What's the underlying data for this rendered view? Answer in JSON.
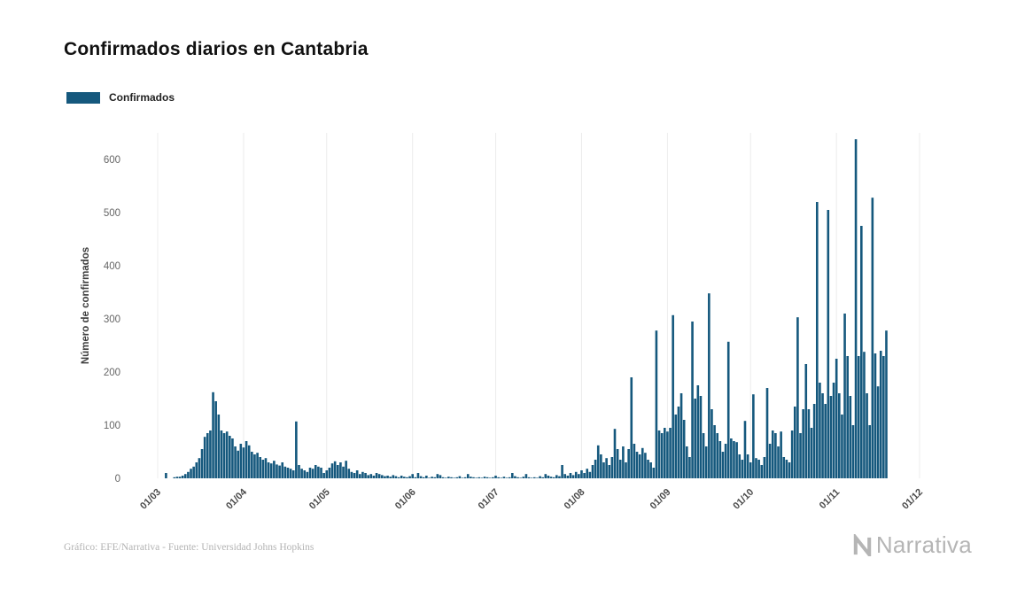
{
  "title": "Confirmados diarios en Cantabria",
  "legend": {
    "label": "Confirmados",
    "color": "#15587d"
  },
  "footer": {
    "credit": "Gráfico: EFE/Narrativa - Fuente: Universidad Johns Hopkins"
  },
  "logo": {
    "text": "Narrativa"
  },
  "chart_data": {
    "type": "bar",
    "title": "Confirmados diarios en Cantabria",
    "series_name": "Confirmados",
    "xlabel": "",
    "ylabel": "Número de confirmados",
    "start_date": "2020-03-01",
    "ylim": [
      0,
      650
    ],
    "y_ticks": [
      0,
      100,
      200,
      300,
      400,
      500,
      600
    ],
    "x_ticks": [
      {
        "label": "01/03",
        "day": 0
      },
      {
        "label": "01/04",
        "day": 31
      },
      {
        "label": "01/05",
        "day": 61
      },
      {
        "label": "01/06",
        "day": 92
      },
      {
        "label": "01/07",
        "day": 122
      },
      {
        "label": "01/08",
        "day": 153
      },
      {
        "label": "01/09",
        "day": 184
      },
      {
        "label": "01/10",
        "day": 214
      },
      {
        "label": "01/11",
        "day": 245
      },
      {
        "label": "01/12",
        "day": 275
      }
    ],
    "bar_color": "#15587d",
    "grid": "vertical-month-lines",
    "legend_position": "top-left",
    "values": [
      0,
      0,
      0,
      10,
      0,
      0,
      2,
      3,
      3,
      5,
      8,
      12,
      18,
      22,
      30,
      38,
      55,
      78,
      85,
      90,
      162,
      145,
      120,
      90,
      85,
      88,
      80,
      75,
      60,
      52,
      65,
      58,
      70,
      62,
      50,
      45,
      48,
      40,
      35,
      38,
      30,
      28,
      33,
      26,
      24,
      30,
      22,
      20,
      18,
      15,
      107,
      25,
      18,
      15,
      12,
      20,
      18,
      25,
      22,
      20,
      10,
      15,
      20,
      28,
      32,
      25,
      30,
      22,
      33,
      18,
      12,
      10,
      15,
      8,
      12,
      10,
      6,
      8,
      5,
      10,
      8,
      6,
      4,
      5,
      3,
      6,
      4,
      2,
      5,
      3,
      2,
      4,
      8,
      2,
      10,
      4,
      2,
      5,
      1,
      3,
      2,
      8,
      6,
      2,
      1,
      3,
      2,
      1,
      2,
      4,
      1,
      2,
      8,
      3,
      2,
      1,
      2,
      1,
      3,
      2,
      1,
      2,
      5,
      2,
      1,
      3,
      1,
      2,
      10,
      4,
      2,
      1,
      3,
      8,
      2,
      1,
      2,
      1,
      4,
      2,
      8,
      5,
      3,
      2,
      6,
      4,
      25,
      8,
      5,
      10,
      6,
      12,
      8,
      15,
      10,
      18,
      12,
      25,
      35,
      62,
      45,
      30,
      38,
      25,
      40,
      93,
      55,
      35,
      60,
      30,
      55,
      190,
      65,
      50,
      45,
      57,
      48,
      35,
      30,
      20,
      278,
      90,
      85,
      95,
      88,
      95,
      307,
      120,
      135,
      160,
      110,
      60,
      40,
      295,
      150,
      175,
      155,
      85,
      60,
      348,
      130,
      100,
      85,
      70,
      50,
      65,
      257,
      75,
      70,
      68,
      45,
      35,
      108,
      45,
      30,
      158,
      38,
      35,
      25,
      40,
      170,
      65,
      90,
      85,
      60,
      88,
      40,
      35,
      30,
      90,
      135,
      303,
      85,
      130,
      215,
      130,
      95,
      140,
      520,
      180,
      160,
      140,
      505,
      155,
      180,
      225,
      160,
      120,
      310,
      230,
      155,
      100,
      638,
      230,
      475,
      238,
      160,
      100,
      528,
      235,
      173,
      240,
      230,
      278
    ]
  }
}
